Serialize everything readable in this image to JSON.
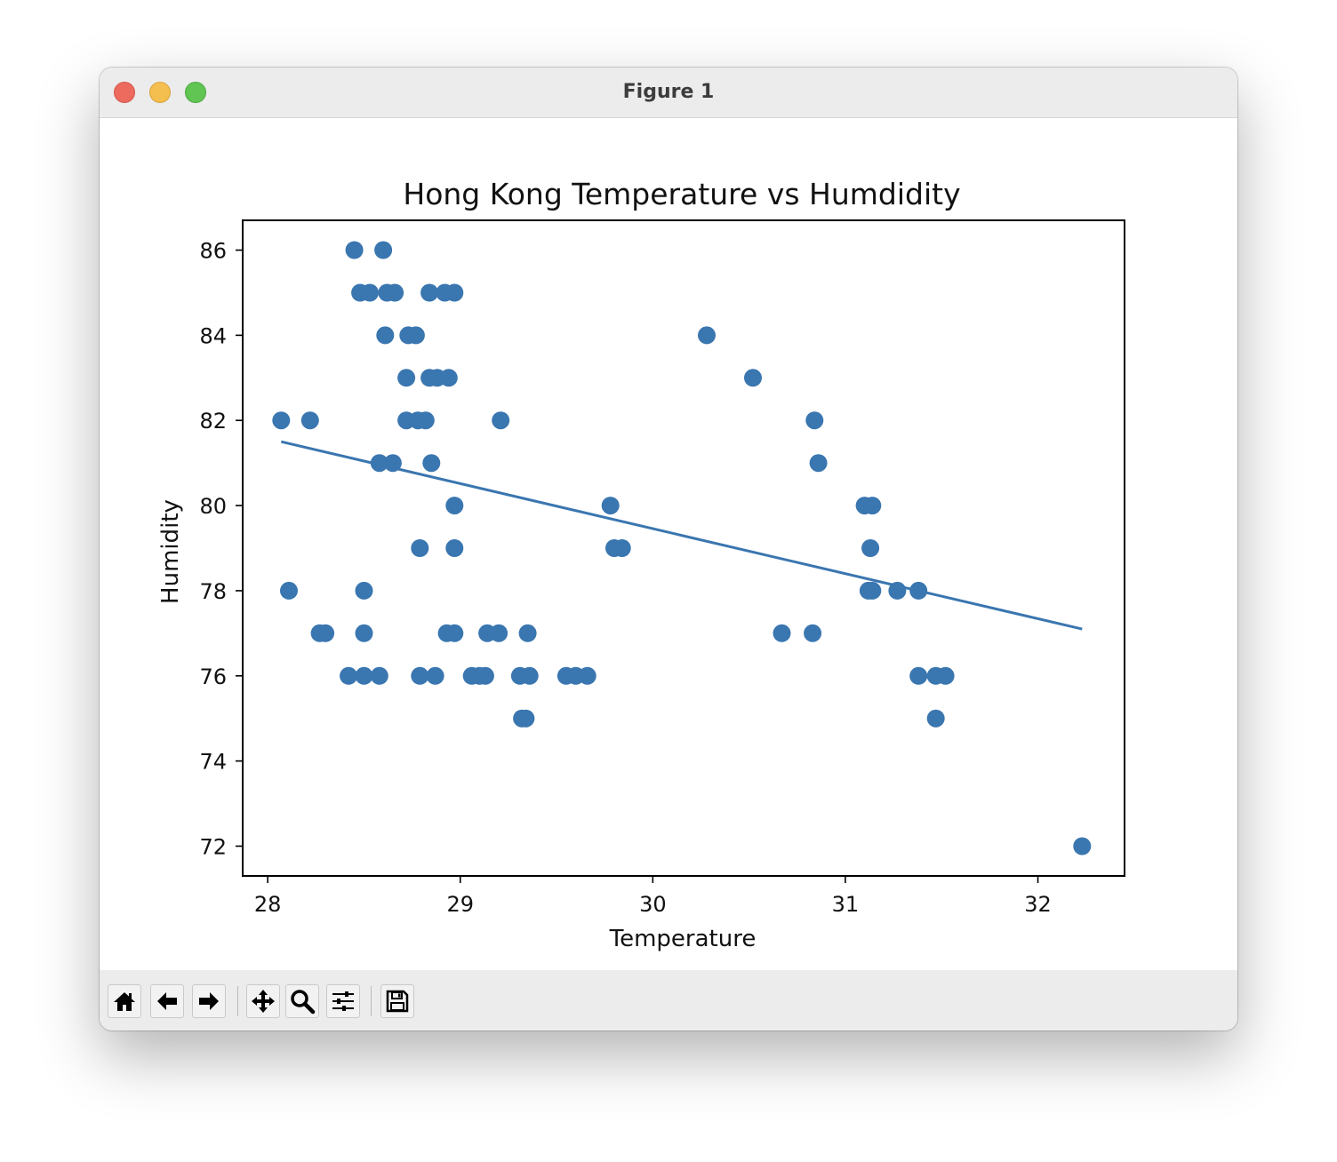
{
  "window": {
    "title": "Figure 1"
  },
  "toolbar": {
    "buttons": [
      {
        "name": "home-button",
        "icon": "home-icon"
      },
      {
        "name": "back-button",
        "icon": "arrow-left-icon"
      },
      {
        "name": "forward-button",
        "icon": "arrow-right-icon"
      },
      {
        "name": "pan-button",
        "icon": "move-icon"
      },
      {
        "name": "zoom-button",
        "icon": "magnifier-icon"
      },
      {
        "name": "configure-subplots-button",
        "icon": "sliders-icon"
      },
      {
        "name": "save-button",
        "icon": "floppy-disk-icon"
      }
    ]
  },
  "chart_data": {
    "type": "scatter",
    "title": "Hong Kong Temperature vs Humdidity",
    "xlabel": "Temperature",
    "ylabel": "Humidity",
    "xlim": [
      27.87,
      32.45
    ],
    "ylim": [
      71.3,
      86.7
    ],
    "xticks": [
      28,
      29,
      30,
      31,
      32
    ],
    "yticks": [
      72,
      74,
      76,
      78,
      80,
      82,
      84,
      86
    ],
    "grid": false,
    "marker_color": "#3a76b0",
    "points": [
      [
        28.45,
        86
      ],
      [
        28.6,
        86
      ],
      [
        28.48,
        85
      ],
      [
        28.53,
        85
      ],
      [
        28.62,
        85
      ],
      [
        28.66,
        85
      ],
      [
        28.84,
        85
      ],
      [
        28.92,
        85
      ],
      [
        28.97,
        85
      ],
      [
        28.61,
        84
      ],
      [
        28.73,
        84
      ],
      [
        28.77,
        84
      ],
      [
        30.28,
        84
      ],
      [
        28.72,
        83
      ],
      [
        28.84,
        83
      ],
      [
        28.88,
        83
      ],
      [
        28.94,
        83
      ],
      [
        30.52,
        83
      ],
      [
        28.07,
        82
      ],
      [
        28.22,
        82
      ],
      [
        28.72,
        82
      ],
      [
        28.78,
        82
      ],
      [
        28.82,
        82
      ],
      [
        29.21,
        82
      ],
      [
        30.84,
        82
      ],
      [
        28.58,
        81
      ],
      [
        28.65,
        81
      ],
      [
        28.85,
        81
      ],
      [
        30.86,
        81
      ],
      [
        28.97,
        80
      ],
      [
        29.78,
        80
      ],
      [
        31.1,
        80
      ],
      [
        31.14,
        80
      ],
      [
        28.79,
        79
      ],
      [
        28.97,
        79
      ],
      [
        29.8,
        79
      ],
      [
        29.84,
        79
      ],
      [
        31.13,
        79
      ],
      [
        28.11,
        78
      ],
      [
        28.5,
        78
      ],
      [
        31.12,
        78
      ],
      [
        31.14,
        78
      ],
      [
        31.27,
        78
      ],
      [
        31.38,
        78
      ],
      [
        28.27,
        77
      ],
      [
        28.3,
        77
      ],
      [
        28.5,
        77
      ],
      [
        28.93,
        77
      ],
      [
        28.97,
        77
      ],
      [
        29.14,
        77
      ],
      [
        29.2,
        77
      ],
      [
        29.35,
        77
      ],
      [
        30.67,
        77
      ],
      [
        30.83,
        77
      ],
      [
        28.42,
        76
      ],
      [
        28.5,
        76
      ],
      [
        28.58,
        76
      ],
      [
        28.79,
        76
      ],
      [
        28.87,
        76
      ],
      [
        29.06,
        76
      ],
      [
        29.1,
        76
      ],
      [
        29.13,
        76
      ],
      [
        29.31,
        76
      ],
      [
        29.36,
        76
      ],
      [
        29.55,
        76
      ],
      [
        29.6,
        76
      ],
      [
        29.66,
        76
      ],
      [
        31.38,
        76
      ],
      [
        31.47,
        76
      ],
      [
        31.52,
        76
      ],
      [
        29.32,
        75
      ],
      [
        29.34,
        75
      ],
      [
        31.47,
        75
      ],
      [
        32.23,
        72
      ]
    ],
    "regression_line": {
      "x": [
        28.07,
        32.23
      ],
      "y": [
        81.5,
        77.1
      ]
    }
  }
}
